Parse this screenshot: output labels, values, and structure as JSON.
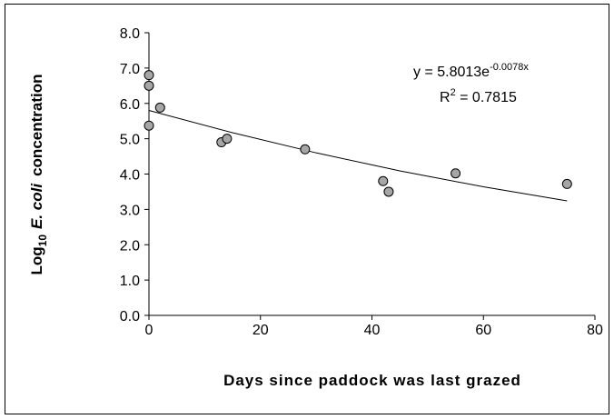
{
  "chart_data": {
    "type": "scatter",
    "x_label": "Days since paddock was last grazed",
    "y_label": {
      "prefix": "Log",
      "subscript": "10",
      "italic": "E. coli",
      "suffix": "concentration"
    },
    "annotations": {
      "equation": "y = 5.8013e",
      "exponent": "-0.0078x",
      "r_prefix": "R",
      "r_sup": "2",
      "r_value": " = 0.7815"
    },
    "series": [
      {
        "name": "E. coli",
        "color": "#a6a6a6",
        "x": [
          0,
          0,
          0,
          2,
          13,
          14,
          28,
          42,
          43,
          55,
          75
        ],
        "values": [
          6.8,
          6.5,
          5.37,
          5.88,
          4.9,
          5.0,
          4.7,
          3.8,
          3.5,
          4.02,
          3.72
        ]
      }
    ],
    "trendline": {
      "x": [
        0,
        15,
        30,
        45,
        60,
        75
      ],
      "values": [
        5.8,
        5.17,
        4.6,
        4.09,
        3.64,
        3.24
      ]
    },
    "xlim": [
      0,
      80
    ],
    "xticks": [
      0,
      20,
      40,
      60,
      80
    ],
    "ylim": [
      0,
      8
    ],
    "yticks": [
      {
        "value": 0,
        "label": "0.0"
      },
      {
        "value": 1,
        "label": "1.0"
      },
      {
        "value": 2,
        "label": "2.0"
      },
      {
        "value": 3,
        "label": "3.0"
      },
      {
        "value": 4,
        "label": "4.0"
      },
      {
        "value": 5,
        "label": "5.0"
      },
      {
        "value": 6,
        "label": "6.0"
      },
      {
        "value": 7,
        "label": "7.0"
      },
      {
        "value": 8,
        "label": "8.0"
      }
    ],
    "grid": false
  }
}
